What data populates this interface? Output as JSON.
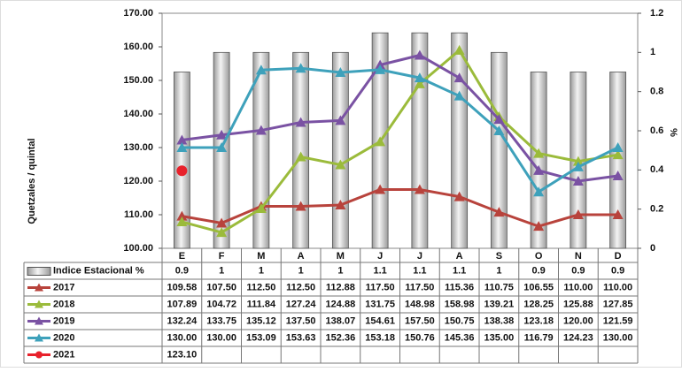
{
  "chart_data": {
    "type": "combo",
    "y_label": "Quetzales / quintal",
    "y2_label": "%",
    "categories": [
      "E",
      "F",
      "M",
      "A",
      "M",
      "J",
      "J",
      "A",
      "S",
      "O",
      "N",
      "D"
    ],
    "ylim": [
      100,
      170
    ],
    "yticks": [
      {
        "value": 100,
        "label": "100.00"
      },
      {
        "value": 110,
        "label": "110.00"
      },
      {
        "value": 120,
        "label": "120.00"
      },
      {
        "value": 130,
        "label": "130.00"
      },
      {
        "value": 140,
        "label": "140.00"
      },
      {
        "value": 150,
        "label": "150.00"
      },
      {
        "value": 160,
        "label": "160.00"
      },
      {
        "value": 170,
        "label": "170.00"
      }
    ],
    "y2lim": [
      0,
      1.2
    ],
    "y2ticks": [
      0,
      0.2,
      0.4,
      0.6,
      0.8,
      1,
      1.2
    ],
    "series": [
      {
        "name": "Indice Estacional %",
        "color": "#c8c8c8",
        "axis": "y2",
        "values": [
          0.9,
          1,
          1,
          1,
          1,
          1.1,
          1.1,
          1.1,
          1,
          0.9,
          0.9,
          0.9
        ]
      },
      {
        "name": "2017",
        "color": "#b8433c",
        "values": [
          109.58,
          107.5,
          112.5,
          112.5,
          112.88,
          117.5,
          117.5,
          115.36,
          110.75,
          106.55,
          110,
          110
        ],
        "value_labels": [
          "109.58",
          "107.50",
          "112.50",
          "112.50",
          "112.88",
          "117.50",
          "117.50",
          "115.36",
          "110.75",
          "106.55",
          "110.00",
          "110.00"
        ]
      },
      {
        "name": "2018",
        "color": "#9bbb3b",
        "values": [
          107.89,
          104.72,
          111.84,
          127.24,
          124.88,
          131.75,
          148.98,
          158.98,
          139.21,
          128.25,
          125.88,
          127.85
        ],
        "value_labels": [
          "107.89",
          "104.72",
          "111.84",
          "127.24",
          "124.88",
          "131.75",
          "148.98",
          "158.98",
          "139.21",
          "128.25",
          "125.88",
          "127.85"
        ]
      },
      {
        "name": "2019",
        "color": "#7a52a3",
        "values": [
          132.24,
          133.75,
          135.12,
          137.5,
          138.07,
          154.61,
          157.5,
          150.75,
          138.38,
          123.18,
          120,
          121.59
        ],
        "value_labels": [
          "132.24",
          "133.75",
          "135.12",
          "137.50",
          "138.07",
          "154.61",
          "157.50",
          "150.75",
          "138.38",
          "123.18",
          "120.00",
          "121.59"
        ]
      },
      {
        "name": "2020",
        "color": "#3ea1bb",
        "values": [
          130,
          130,
          153.09,
          153.63,
          152.36,
          153.18,
          150.76,
          145.36,
          135,
          116.79,
          124.23,
          130
        ],
        "value_labels": [
          "130.00",
          "130.00",
          "153.09",
          "153.63",
          "152.36",
          "153.18",
          "150.76",
          "145.36",
          "135.00",
          "116.79",
          "124.23",
          "130.00"
        ]
      },
      {
        "name": "2021",
        "color": "#e8212b",
        "values": [
          123.1,
          null,
          null,
          null,
          null,
          null,
          null,
          null,
          null,
          null,
          null,
          null
        ],
        "value_labels": [
          "123.10",
          null,
          null,
          null,
          null,
          null,
          null,
          null,
          null,
          null,
          null,
          null
        ]
      }
    ]
  }
}
